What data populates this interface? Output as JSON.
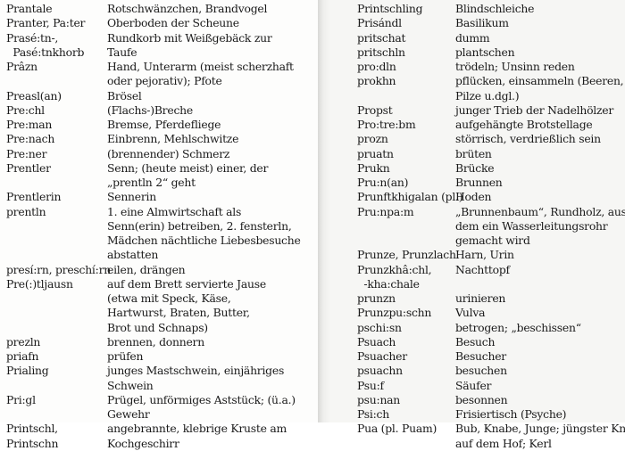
{
  "left_page": {
    "entries": [
      {
        "term": [
          "Prantale"
        ],
        "def": [
          "Rotschwänzchen, Brandvogel"
        ]
      },
      {
        "term": [
          "Pranter, Pa:ter"
        ],
        "def": [
          "Oberboden der Scheune"
        ]
      },
      {
        "term": [
          "Prasé:tn-,",
          "  Pasé:tnkhorb"
        ],
        "def": [
          "Rundkorb mit Weißgebäck zur",
          "Taufe"
        ]
      },
      {
        "term": [
          "Prâzn"
        ],
        "def": [
          "Hand, Unterarm (meist scherzhaft",
          "oder pejorativ); Pfote"
        ]
      },
      {
        "term": [
          "Preasl(an)"
        ],
        "def": [
          "Brösel"
        ]
      },
      {
        "term": [
          "Pre:chl"
        ],
        "def": [
          "(Flachs-)Breche"
        ]
      },
      {
        "term": [
          "Pre:man"
        ],
        "def": [
          "Bremse, Pferdefliege"
        ]
      },
      {
        "term": [
          "Pre:nach"
        ],
        "def": [
          "Einbrenn, Mehlschwitze"
        ]
      },
      {
        "term": [
          "Pre:ner"
        ],
        "def": [
          "(brennender) Schmerz"
        ]
      },
      {
        "term": [
          "Prentler"
        ],
        "def": [
          "Senn; (heute meist) einer, der",
          "„prentln 2“ geht"
        ]
      },
      {
        "term": [
          "Prentlerin"
        ],
        "def": [
          "Sennerin"
        ]
      },
      {
        "term": [
          "prentln"
        ],
        "def": [
          "1. eine Almwirtschaft als",
          "Senn(erin) betreiben, 2. fensterln,",
          "Mädchen nächtliche Liebesbesuche",
          "abstatten"
        ]
      },
      {
        "term": [
          "presí:rn, preschí:rn"
        ],
        "def": [
          "eilen, drängen"
        ]
      },
      {
        "term": [
          "Pre(:)tljausn"
        ],
        "def": [
          "auf dem Brett servierte Jause",
          "(etwa mit Speck, Käse,",
          "Hartwurst, Braten, Butter,",
          "Brot und Schnaps)"
        ]
      },
      {
        "term": [
          "prezln"
        ],
        "def": [
          "brennen, donnern"
        ]
      },
      {
        "term": [
          "priafn"
        ],
        "def": [
          "prüfen"
        ]
      },
      {
        "term": [
          "Prialing"
        ],
        "def": [
          "junges Mastschwein, einjähriges",
          "Schwein"
        ]
      },
      {
        "term": [
          "Pri:gl"
        ],
        "def": [
          "Prügel, unförmiges Aststück; (ü.a.)",
          "Gewehr"
        ]
      },
      {
        "term": [
          "Printschl,",
          "Printschn"
        ],
        "def": [
          "angebrannte, klebrige Kruste am",
          "Kochgeschirr"
        ]
      }
    ]
  },
  "right_page": {
    "entries": [
      {
        "term": [
          "Printschling"
        ],
        "def": [
          "Blindschleiche"
        ]
      },
      {
        "term": [
          "Prisándl"
        ],
        "def": [
          "Basilikum"
        ]
      },
      {
        "term": [
          "pritschat"
        ],
        "def": [
          "dumm"
        ]
      },
      {
        "term": [
          "pritschln"
        ],
        "def": [
          "plantschen"
        ]
      },
      {
        "term": [
          "pro:dln"
        ],
        "def": [
          "trödeln; Unsinn reden"
        ]
      },
      {
        "term": [
          "prokhn"
        ],
        "def": [
          "pflücken, einsammeln (Beeren,",
          "Pilze u.dgl.)"
        ]
      },
      {
        "term": [
          "Propst"
        ],
        "def": [
          "junger Trieb der Nadelhölzer"
        ]
      },
      {
        "term": [
          "Pro:tre:bm"
        ],
        "def": [
          "aufgehängte Brotstellage"
        ]
      },
      {
        "term": [
          "prozn"
        ],
        "def": [
          "störrisch, verdrießlich sein"
        ]
      },
      {
        "term": [
          "pruatn"
        ],
        "def": [
          "brüten"
        ]
      },
      {
        "term": [
          "Prukn"
        ],
        "def": [
          "Brücke"
        ]
      },
      {
        "term": [
          "Pru:n(an)"
        ],
        "def": [
          "Brunnen"
        ]
      },
      {
        "term": [
          "Prunftkhigalan (pl.)"
        ],
        "def": [
          "Hoden"
        ]
      },
      {
        "term": [
          "Pru:npa:m"
        ],
        "def": [
          "„Brunnenbaum“, Rundholz, aus",
          "dem ein Wasserleitungsrohr",
          "gemacht wird"
        ]
      },
      {
        "term": [
          "Prunze, Prunzlach"
        ],
        "def": [
          "Harn, Urin"
        ]
      },
      {
        "term": [
          "Prunzkhâ:chl,",
          "  -kha:chale"
        ],
        "def": [
          "Nachttopf"
        ]
      },
      {
        "term": [
          "prunzn"
        ],
        "def": [
          "urinieren"
        ]
      },
      {
        "term": [
          "Prunzpu:schn"
        ],
        "def": [
          "Vulva"
        ]
      },
      {
        "term": [
          "pschi:sn"
        ],
        "def": [
          "betrogen; „beschissen“"
        ]
      },
      {
        "term": [
          "Psuach"
        ],
        "def": [
          "Besuch"
        ]
      },
      {
        "term": [
          "Psuacher"
        ],
        "def": [
          "Besucher"
        ]
      },
      {
        "term": [
          "psuachn"
        ],
        "def": [
          "besuchen"
        ]
      },
      {
        "term": [
          "Psu:f"
        ],
        "def": [
          "Säufer"
        ]
      },
      {
        "term": [
          "psu:nan"
        ],
        "def": [
          "besonnen"
        ]
      },
      {
        "term": [
          "Psi:ch"
        ],
        "def": [
          "Frisiertisch (Psyche)"
        ]
      },
      {
        "term": [
          "Pua (pl. Puam)"
        ],
        "def": [
          "Bub, Knabe, Junge; jüngster Knecht",
          "auf dem Hof; Kerl"
        ]
      }
    ]
  }
}
